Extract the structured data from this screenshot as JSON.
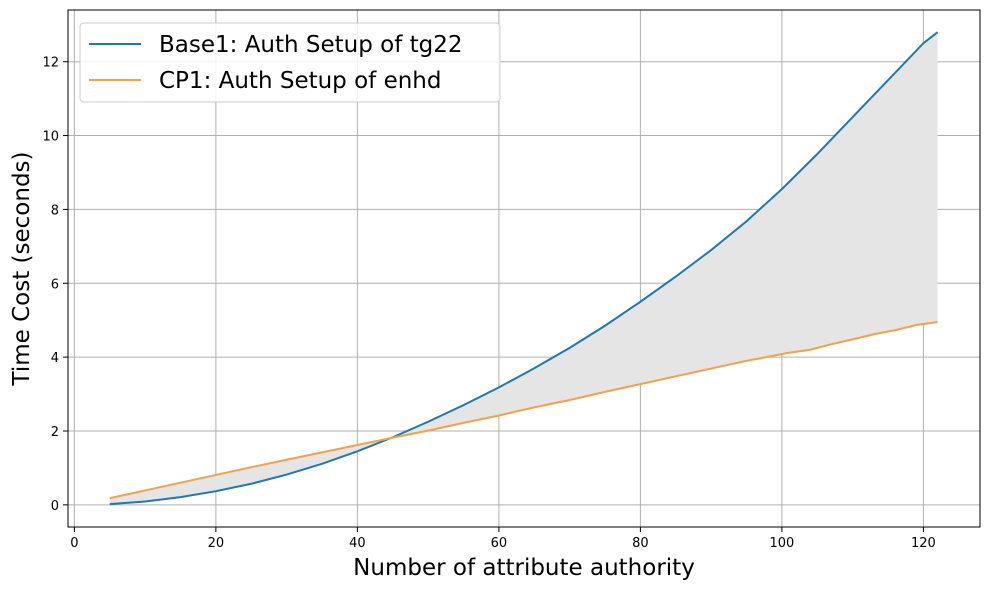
{
  "chart_data": {
    "type": "line",
    "xlabel": "Number of attribute authority",
    "ylabel": "Time Cost (seconds)",
    "xlim": [
      -0.9,
      128
    ],
    "ylim": [
      -0.6,
      13.4
    ],
    "x_ticks": [
      0,
      20,
      40,
      60,
      80,
      100,
      120
    ],
    "y_ticks": [
      0,
      2,
      4,
      6,
      8,
      10,
      12
    ],
    "grid": true,
    "legend_position": "upper-left",
    "fill_between": {
      "color": "#e5e5e5",
      "series": [
        0,
        1
      ]
    },
    "series": [
      {
        "name": "Base1: Auth Setup of tg22",
        "color": "#1f77b4",
        "x": [
          5,
          10,
          15,
          20,
          25,
          30,
          35,
          40,
          45,
          50,
          55,
          60,
          65,
          70,
          75,
          80,
          85,
          90,
          95,
          100,
          105,
          110,
          115,
          120,
          122
        ],
        "y": [
          0.02,
          0.09,
          0.21,
          0.37,
          0.57,
          0.82,
          1.11,
          1.45,
          1.83,
          2.25,
          2.7,
          3.18,
          3.7,
          4.25,
          4.85,
          5.5,
          6.18,
          6.9,
          7.68,
          8.55,
          9.5,
          10.5,
          11.5,
          12.5,
          12.8
        ]
      },
      {
        "name": "CP1: Auth Setup of enhd",
        "color": "#f5a04a",
        "x": [
          5,
          10,
          15,
          20,
          25,
          30,
          35,
          40,
          45,
          50,
          55,
          60,
          65,
          70,
          75,
          80,
          85,
          90,
          95,
          100,
          101,
          104,
          107,
          110,
          113,
          116,
          119,
          122
        ],
        "y": [
          0.18,
          0.39,
          0.6,
          0.81,
          1.02,
          1.22,
          1.42,
          1.62,
          1.82,
          2.01,
          2.22,
          2.42,
          2.64,
          2.84,
          3.06,
          3.27,
          3.48,
          3.69,
          3.9,
          4.08,
          4.12,
          4.2,
          4.35,
          4.48,
          4.62,
          4.73,
          4.87,
          4.95
        ]
      }
    ]
  }
}
